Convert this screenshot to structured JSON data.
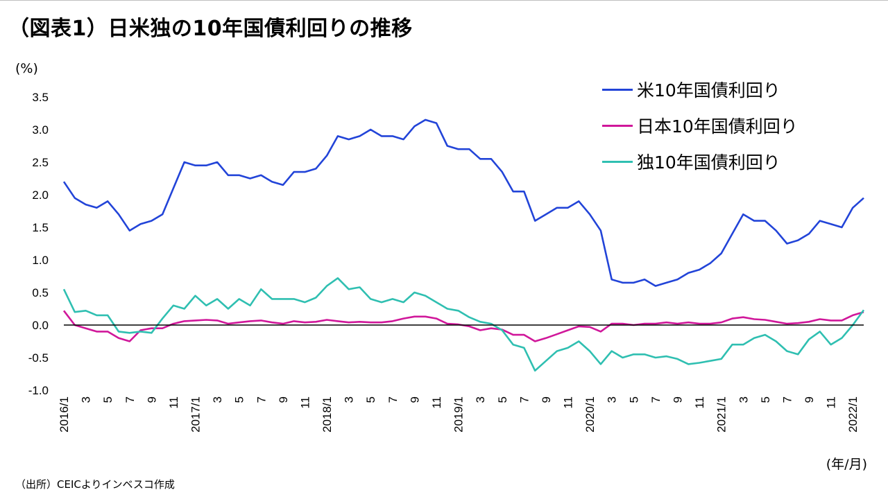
{
  "title": "（図表1）日米独の10年国債利回りの推移",
  "unit_label": "(%)",
  "x_unit_label": "(年/月)",
  "source": "（出所）CEICよりインベスコ作成",
  "colors": {
    "us": "#2244d8",
    "jp": "#d0179a",
    "de": "#2fbfb1"
  },
  "chart_data": {
    "type": "line",
    "title": "（図表1）日米独の10年国債利回りの推移",
    "ylabel": "(%)",
    "xlabel": "(年/月)",
    "ylim": [
      -1.0,
      3.5
    ],
    "yticks": [
      "3.5",
      "3.0",
      "2.5",
      "2.0",
      "1.5",
      "1.0",
      "0.5",
      "0.0",
      "-0.5",
      "-1.0"
    ],
    "xticks": [
      "2016/1",
      "3",
      "5",
      "7",
      "9",
      "11",
      "2017/1",
      "3",
      "5",
      "7",
      "9",
      "11",
      "2018/1",
      "3",
      "5",
      "7",
      "9",
      "11",
      "2019/1",
      "3",
      "5",
      "7",
      "9",
      "11",
      "2020/1",
      "3",
      "5",
      "7",
      "9",
      "11",
      "2021/1",
      "3",
      "5",
      "7",
      "9",
      "11",
      "2022/1"
    ],
    "x": [
      "2016-01",
      "2016-02",
      "2016-03",
      "2016-04",
      "2016-05",
      "2016-06",
      "2016-07",
      "2016-08",
      "2016-09",
      "2016-10",
      "2016-11",
      "2016-12",
      "2017-01",
      "2017-02",
      "2017-03",
      "2017-04",
      "2017-05",
      "2017-06",
      "2017-07",
      "2017-08",
      "2017-09",
      "2017-10",
      "2017-11",
      "2017-12",
      "2018-01",
      "2018-02",
      "2018-03",
      "2018-04",
      "2018-05",
      "2018-06",
      "2018-07",
      "2018-08",
      "2018-09",
      "2018-10",
      "2018-11",
      "2018-12",
      "2019-01",
      "2019-02",
      "2019-03",
      "2019-04",
      "2019-05",
      "2019-06",
      "2019-07",
      "2019-08",
      "2019-09",
      "2019-10",
      "2019-11",
      "2019-12",
      "2020-01",
      "2020-02",
      "2020-03",
      "2020-04",
      "2020-05",
      "2020-06",
      "2020-07",
      "2020-08",
      "2020-09",
      "2020-10",
      "2020-11",
      "2020-12",
      "2021-01",
      "2021-02",
      "2021-03",
      "2021-04",
      "2021-05",
      "2021-06",
      "2021-07",
      "2021-08",
      "2021-09",
      "2021-10",
      "2021-11",
      "2021-12",
      "2022-01",
      "2022-02"
    ],
    "series": [
      {
        "name": "米10年国債利回り",
        "values": [
          2.2,
          1.95,
          1.85,
          1.8,
          1.9,
          1.7,
          1.45,
          1.55,
          1.6,
          1.7,
          2.1,
          2.5,
          2.45,
          2.45,
          2.5,
          2.3,
          2.3,
          2.25,
          2.3,
          2.2,
          2.15,
          2.35,
          2.35,
          2.4,
          2.6,
          2.9,
          2.85,
          2.9,
          3.0,
          2.9,
          2.9,
          2.85,
          3.05,
          3.15,
          3.1,
          2.75,
          2.7,
          2.7,
          2.55,
          2.55,
          2.35,
          2.05,
          2.05,
          1.6,
          1.7,
          1.8,
          1.8,
          1.9,
          1.7,
          1.45,
          0.7,
          0.65,
          0.65,
          0.7,
          0.6,
          0.65,
          0.7,
          0.8,
          0.85,
          0.95,
          1.1,
          1.4,
          1.7,
          1.6,
          1.6,
          1.45,
          1.25,
          1.3,
          1.4,
          1.6,
          1.55,
          1.5,
          1.8,
          1.95
        ]
      },
      {
        "name": "日本10年国債利回り",
        "values": [
          0.22,
          0.0,
          -0.05,
          -0.1,
          -0.1,
          -0.2,
          -0.25,
          -0.08,
          -0.05,
          -0.05,
          0.02,
          0.06,
          0.07,
          0.08,
          0.07,
          0.02,
          0.04,
          0.06,
          0.07,
          0.04,
          0.02,
          0.06,
          0.04,
          0.05,
          0.08,
          0.06,
          0.04,
          0.05,
          0.04,
          0.04,
          0.06,
          0.1,
          0.13,
          0.13,
          0.1,
          0.02,
          0.01,
          -0.02,
          -0.08,
          -0.05,
          -0.07,
          -0.15,
          -0.15,
          -0.25,
          -0.2,
          -0.14,
          -0.08,
          -0.02,
          -0.03,
          -0.1,
          0.02,
          0.02,
          0.0,
          0.02,
          0.02,
          0.04,
          0.02,
          0.04,
          0.02,
          0.02,
          0.04,
          0.1,
          0.12,
          0.09,
          0.08,
          0.05,
          0.02,
          0.03,
          0.05,
          0.09,
          0.07,
          0.07,
          0.15,
          0.2
        ]
      },
      {
        "name": "独10年国債利回り",
        "values": [
          0.55,
          0.2,
          0.22,
          0.15,
          0.15,
          -0.1,
          -0.12,
          -0.1,
          -0.12,
          0.1,
          0.3,
          0.25,
          0.45,
          0.3,
          0.4,
          0.25,
          0.4,
          0.3,
          0.55,
          0.4,
          0.4,
          0.4,
          0.35,
          0.42,
          0.6,
          0.72,
          0.55,
          0.58,
          0.4,
          0.35,
          0.4,
          0.35,
          0.5,
          0.45,
          0.35,
          0.25,
          0.22,
          0.12,
          0.05,
          0.02,
          -0.08,
          -0.3,
          -0.35,
          -0.7,
          -0.55,
          -0.4,
          -0.35,
          -0.25,
          -0.4,
          -0.6,
          -0.4,
          -0.5,
          -0.45,
          -0.45,
          -0.5,
          -0.48,
          -0.52,
          -0.6,
          -0.58,
          -0.55,
          -0.52,
          -0.3,
          -0.3,
          -0.2,
          -0.15,
          -0.25,
          -0.4,
          -0.45,
          -0.22,
          -0.1,
          -0.3,
          -0.2,
          0.0,
          0.23
        ]
      }
    ],
    "legend_position": "top-right",
    "grid": false
  }
}
